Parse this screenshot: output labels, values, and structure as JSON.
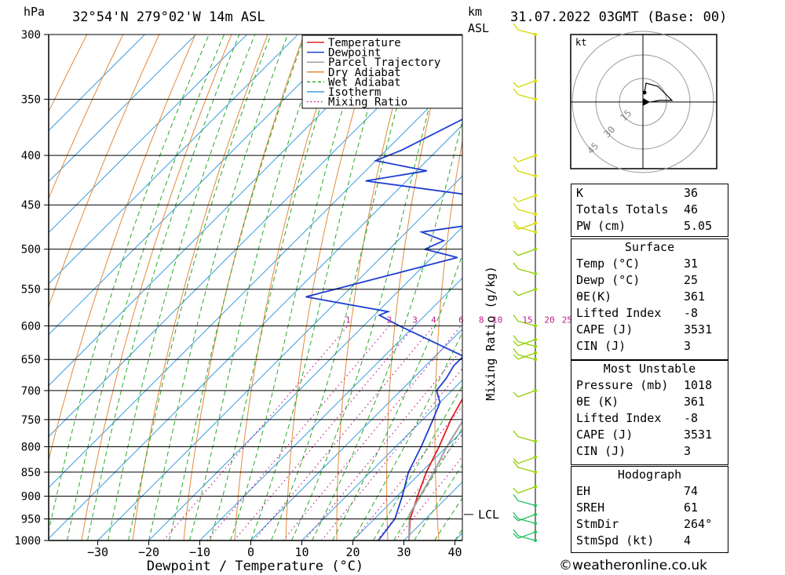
{
  "header": {
    "hpa_unit": "hPa",
    "location": "32°54'N 279°02'W 14m ASL",
    "km_label": "km",
    "asl_label": "ASL",
    "datetime": "31.07.2022 03GMT (Base: 00)"
  },
  "legend": {
    "items": [
      {
        "label": "Temperature",
        "color": "#e02020",
        "style": "solid"
      },
      {
        "label": "Dewpoint",
        "color": "#1f3fd0",
        "style": "solid"
      },
      {
        "label": "Parcel Trajectory",
        "color": "#a0a0a0",
        "style": "solid"
      },
      {
        "label": "Dry Adiabat",
        "color": "#e08a3c",
        "style": "solid"
      },
      {
        "label": "Wet Adiabat",
        "color": "#2aa82a",
        "style": "dashed"
      },
      {
        "label": "Isotherm",
        "color": "#3fa0e0",
        "style": "solid"
      },
      {
        "label": "Mixing Ratio",
        "color": "#c0208a",
        "style": "dotted"
      }
    ]
  },
  "chart_data": {
    "type": "line",
    "title": "32°54'N 279°02'W 14m ASL",
    "xlabel": "Dewpoint / Temperature (°C)",
    "ylabel": "hPa",
    "y_scale": "log",
    "xlim": [
      -40,
      40
    ],
    "ylim": [
      1000,
      300
    ],
    "x_ticks": [
      "−30",
      "−20",
      "−10",
      "0",
      "10",
      "20",
      "30",
      "40"
    ],
    "x_tick_values": [
      -30,
      -20,
      -10,
      0,
      10,
      20,
      30,
      40
    ],
    "pressure_levels": [
      "300",
      "350",
      "400",
      "450",
      "500",
      "550",
      "600",
      "650",
      "700",
      "750",
      "800",
      "850",
      "900",
      "950",
      "1000"
    ],
    "pressure_values": [
      300,
      350,
      400,
      450,
      500,
      550,
      600,
      650,
      700,
      750,
      800,
      850,
      900,
      950,
      1000
    ],
    "mixing_ratio_axis_label": "Mixing Ratio (g/kg)",
    "mixing_ratio_labels": [
      "1",
      "2",
      "3",
      "4",
      "6",
      "8",
      "10",
      "15",
      "20",
      "25"
    ],
    "mixing_ratio_values": [
      1,
      2,
      3,
      4,
      6,
      8,
      10,
      15,
      20,
      25
    ],
    "lcl_label": "LCL",
    "lcl_pressure": 940,
    "grid": true,
    "series": [
      {
        "name": "Temperature",
        "color": "#e02020",
        "points": [
          [
            1000,
            31
          ],
          [
            950,
            27
          ],
          [
            900,
            24
          ],
          [
            850,
            21
          ],
          [
            800,
            18.5
          ],
          [
            750,
            15.5
          ],
          [
            700,
            13
          ],
          [
            680,
            12
          ],
          [
            650,
            11
          ],
          [
            600,
            8.5
          ],
          [
            550,
            5.5
          ],
          [
            500,
            1.5
          ],
          [
            450,
            -3.5
          ],
          [
            420,
            -7
          ],
          [
            400,
            -10
          ],
          [
            370,
            -15
          ],
          [
            350,
            -19
          ],
          [
            320,
            -24.5
          ],
          [
            300,
            -29
          ]
        ]
      },
      {
        "name": "Dewpoint",
        "color": "#1f3fd0",
        "points": [
          [
            1000,
            25
          ],
          [
            950,
            24
          ],
          [
            900,
            21
          ],
          [
            850,
            17.5
          ],
          [
            800,
            15
          ],
          [
            750,
            12
          ],
          [
            720,
            10
          ],
          [
            700,
            7
          ],
          [
            680,
            6.5
          ],
          [
            660,
            5.5
          ],
          [
            645,
            5.5
          ],
          [
            600,
            -13
          ],
          [
            585,
            -19
          ],
          [
            580,
            -18
          ],
          [
            560,
            -37
          ],
          [
            510,
            -15
          ],
          [
            500,
            -23
          ],
          [
            490,
            -21
          ],
          [
            480,
            -27
          ],
          [
            455,
            -1
          ],
          [
            425,
            -48
          ],
          [
            415,
            -38
          ],
          [
            405,
            -50
          ],
          [
            395,
            -47
          ],
          [
            340,
            -35
          ],
          [
            325,
            -46
          ],
          [
            300,
            -40
          ]
        ]
      },
      {
        "name": "Parcel Trajectory",
        "color": "#a0a0a0",
        "points": [
          [
            1000,
            31
          ],
          [
            940,
            26
          ],
          [
            900,
            24.5
          ],
          [
            850,
            22.5
          ],
          [
            800,
            20
          ],
          [
            750,
            18
          ],
          [
            700,
            16
          ],
          [
            650,
            14.5
          ],
          [
            600,
            12.5
          ],
          [
            550,
            10
          ],
          [
            500,
            7
          ],
          [
            450,
            3
          ],
          [
            400,
            -2
          ],
          [
            350,
            -7
          ],
          [
            340,
            -8.5
          ]
        ]
      }
    ]
  },
  "hodograph": {
    "unit_label": "kt",
    "ring_labels": [
      "15",
      "30",
      "45"
    ]
  },
  "indices": {
    "top": [
      {
        "label": "K",
        "value": "36"
      },
      {
        "label": "Totals Totals",
        "value": "46"
      },
      {
        "label": "PW (cm)",
        "value": "5.05"
      }
    ],
    "surface": {
      "title": "Surface",
      "rows": [
        {
          "label": "Temp (°C)",
          "value": "31"
        },
        {
          "label": "Dewp (°C)",
          "value": "25"
        },
        {
          "label": "θE(K)",
          "value": "361"
        },
        {
          "label": "Lifted Index",
          "value": "-8"
        },
        {
          "label": "CAPE (J)",
          "value": "3531"
        },
        {
          "label": "CIN (J)",
          "value": "3"
        }
      ]
    },
    "most_unstable": {
      "title": "Most Unstable",
      "rows": [
        {
          "label": "Pressure (mb)",
          "value": "1018"
        },
        {
          "label": "θE (K)",
          "value": "361"
        },
        {
          "label": "Lifted Index",
          "value": "-8"
        },
        {
          "label": "CAPE (J)",
          "value": "3531"
        },
        {
          "label": "CIN (J)",
          "value": "3"
        }
      ]
    },
    "hodograph": {
      "title": "Hodograph",
      "rows": [
        {
          "label": "EH",
          "value": "74"
        },
        {
          "label": "SREH",
          "value": "61"
        },
        {
          "label": "StmDir",
          "value": "264°"
        },
        {
          "label": "StmSpd (kt)",
          "value": "4"
        }
      ]
    }
  },
  "footer": {
    "copyright": "©weatheronline.co.uk"
  }
}
